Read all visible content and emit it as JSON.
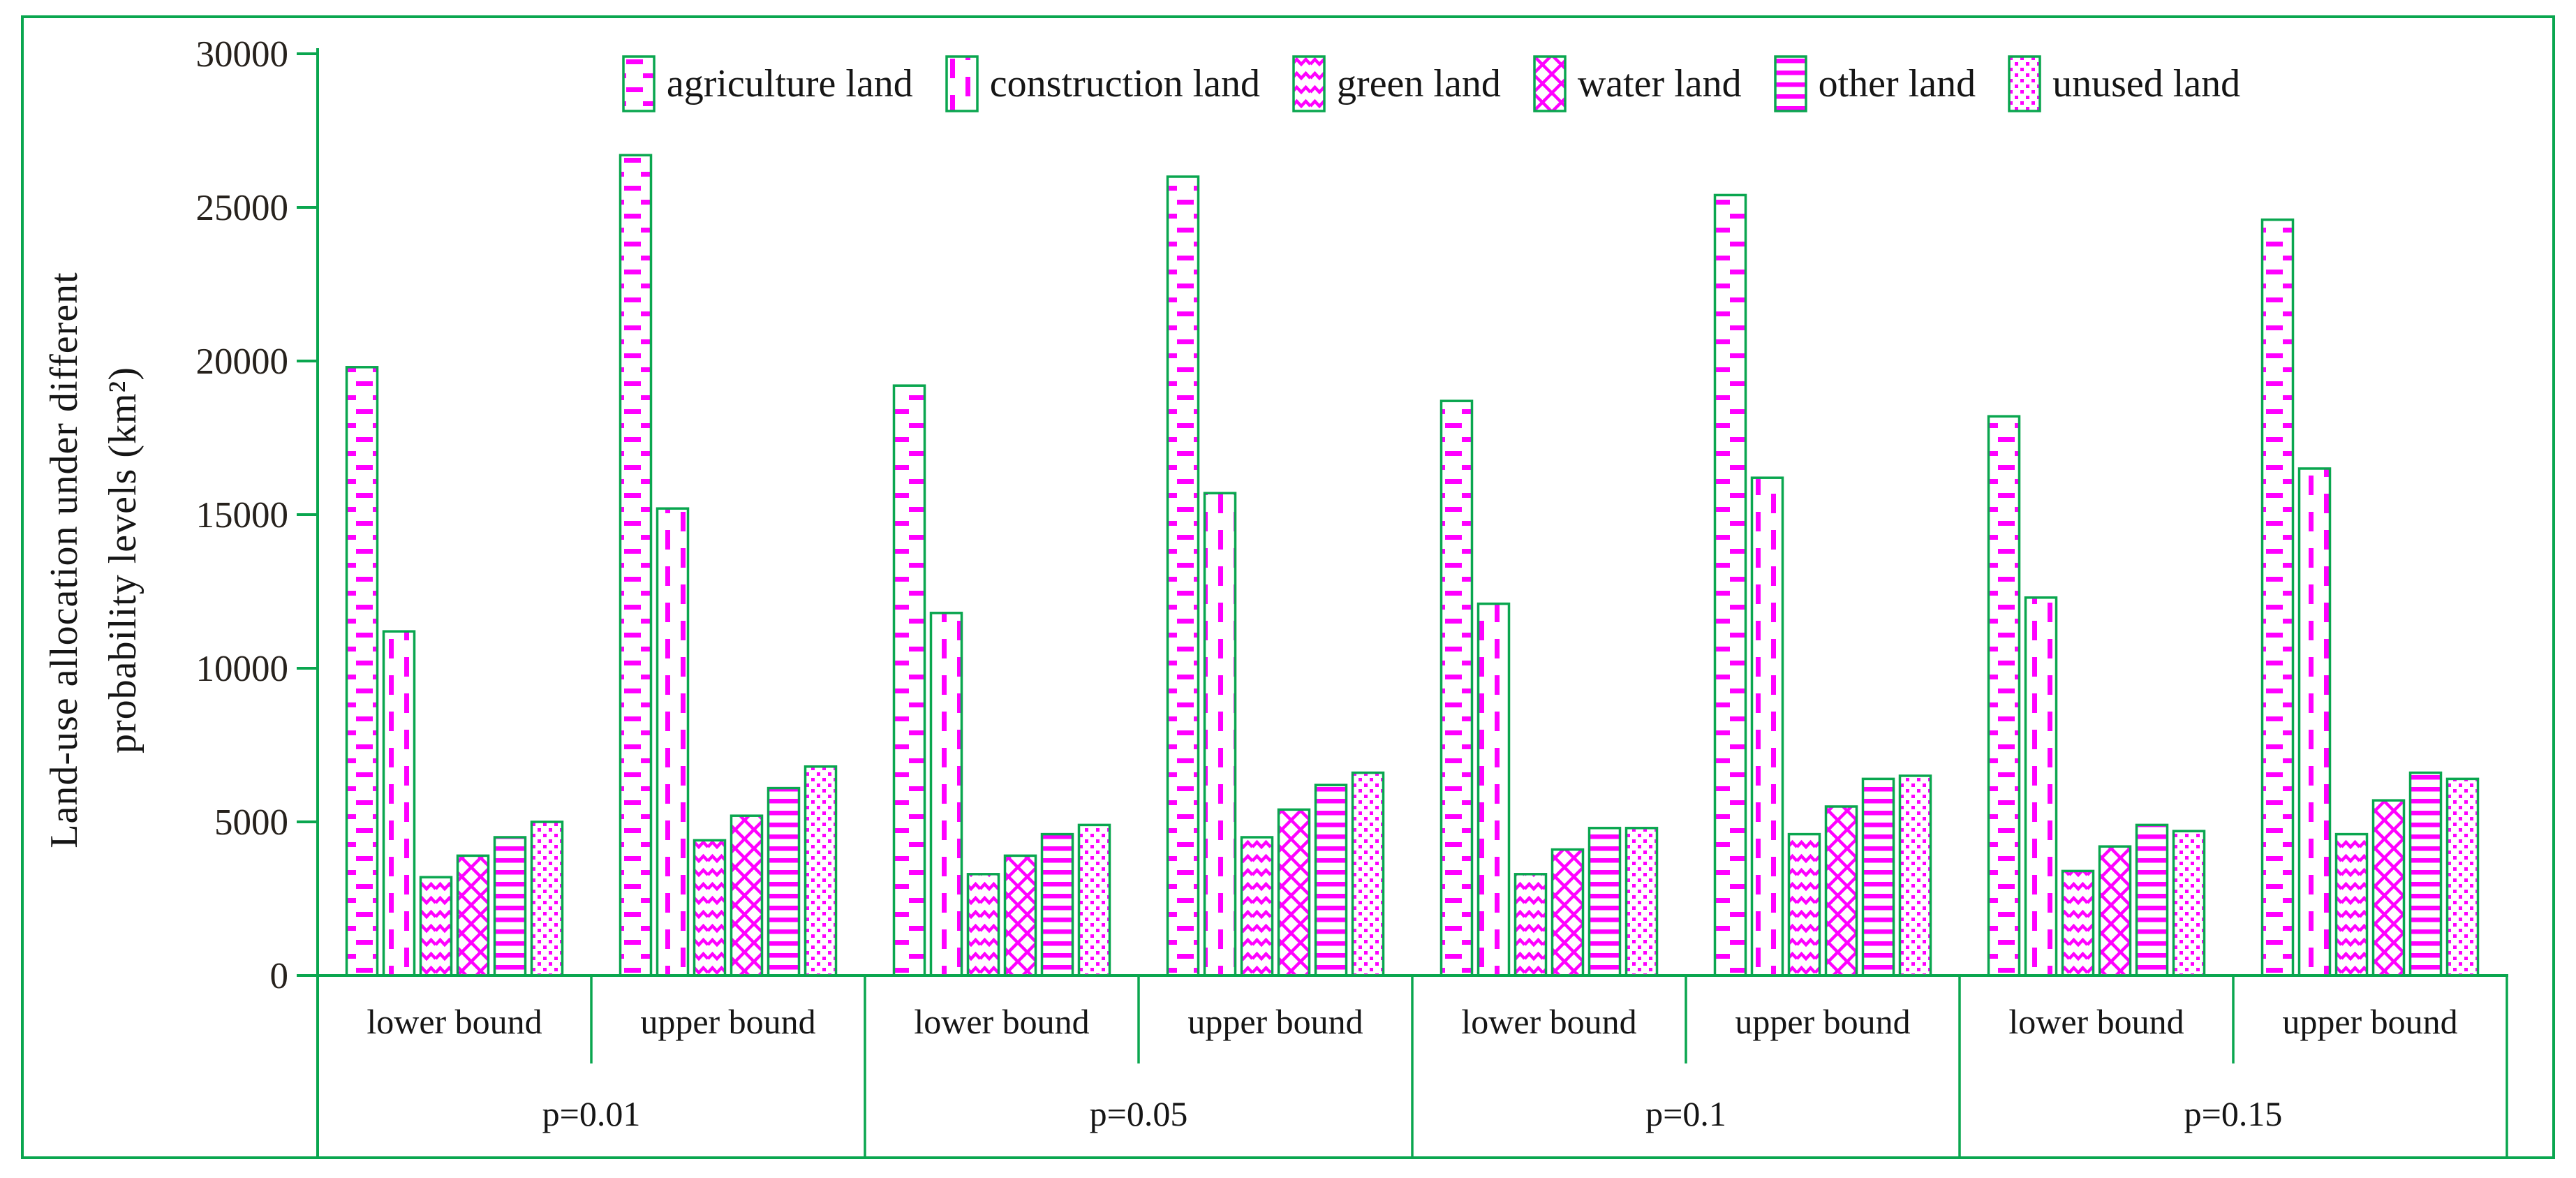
{
  "figure": {
    "border_color": "#0AA64F",
    "background_color": "#ffffff",
    "accent_magenta": "#FF00FF"
  },
  "y_axis": {
    "label_line1": "Land-use allocation under different",
    "label_line2": "probability levels (km²)",
    "ticks": [
      0,
      5000,
      10000,
      15000,
      20000,
      25000,
      30000
    ]
  },
  "legend": {
    "items": [
      {
        "label": "agriculture land",
        "pattern": "p-agriculture",
        "swatch_icon": "dashed-horizontal-pattern-swatch"
      },
      {
        "label": "construction land",
        "pattern": "p-construction",
        "swatch_icon": "dashed-vertical-pattern-swatch"
      },
      {
        "label": "green land",
        "pattern": "p-green",
        "swatch_icon": "zigzag-pattern-swatch"
      },
      {
        "label": "water land",
        "pattern": "p-water",
        "swatch_icon": "diagonal-crosshatch-pattern-swatch"
      },
      {
        "label": "other land",
        "pattern": "p-other",
        "swatch_icon": "horizontal-lines-pattern-swatch"
      },
      {
        "label": "unused land",
        "pattern": "p-unused",
        "swatch_icon": "dotted-pattern-swatch"
      }
    ]
  },
  "chart_data": {
    "type": "bar",
    "title": "",
    "ylabel": "Land-use allocation under different probability levels (km²)",
    "ylim": [
      0,
      30000
    ],
    "grid": false,
    "legend_position": "top",
    "group_labels": [
      "p=0.01",
      "p=0.05",
      "p=0.1",
      "p=0.15"
    ],
    "bound_labels": [
      "lower bound",
      "upper bound"
    ],
    "categories": [
      "p=0.01 lower bound",
      "p=0.01 upper bound",
      "p=0.05 lower bound",
      "p=0.05 upper bound",
      "p=0.1 lower bound",
      "p=0.1 upper bound",
      "p=0.15 lower bound",
      "p=0.15 upper bound"
    ],
    "series": [
      {
        "name": "agriculture land",
        "values": [
          19800,
          26700,
          19200,
          26000,
          18700,
          25400,
          18200,
          24600
        ]
      },
      {
        "name": "construction land",
        "values": [
          11200,
          15200,
          11800,
          15700,
          12100,
          16200,
          12300,
          16500
        ]
      },
      {
        "name": "green land",
        "values": [
          3200,
          4400,
          3300,
          4500,
          3300,
          4600,
          3400,
          4600
        ]
      },
      {
        "name": "water land",
        "values": [
          3900,
          5200,
          3900,
          5400,
          4100,
          5500,
          4200,
          5700
        ]
      },
      {
        "name": "other land",
        "values": [
          4500,
          6100,
          4600,
          6200,
          4800,
          6400,
          4900,
          6600
        ]
      },
      {
        "name": "unused land",
        "values": [
          5000,
          6800,
          4900,
          6600,
          4800,
          6500,
          4700,
          6400
        ]
      }
    ],
    "colors": {
      "pattern_fill": "#FF00FF",
      "bar_border": "#0AA64F",
      "axis": "#0AA64F",
      "text": "#151515"
    }
  }
}
